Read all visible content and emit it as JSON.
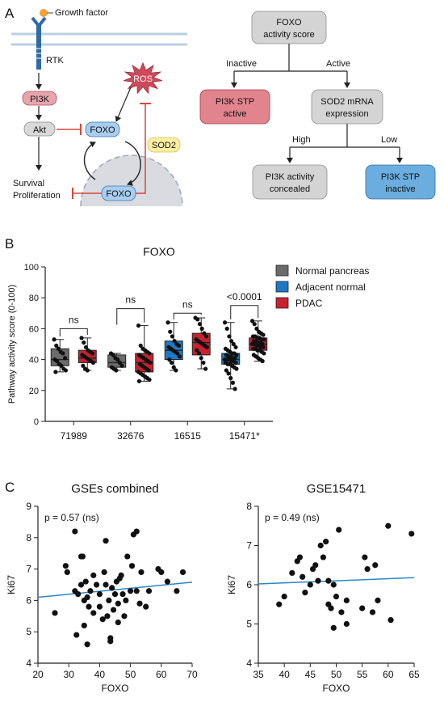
{
  "panel_labels": {
    "a": "A",
    "b": "B",
    "c": "C"
  },
  "pathway": {
    "growth_factor": "Growth factor",
    "rtk": "RTK",
    "pi3k": "PI3K",
    "akt": "Akt",
    "foxo_cyto": "FOXO",
    "foxo_nuc": "FOXO",
    "ros": "ROS",
    "sod2": "SOD2",
    "outcome_line1": "Survival",
    "outcome_line2": "Proliferation",
    "colors": {
      "pink": "#e7a5ad",
      "blue": "#a9cdee",
      "grey": "#d9d9d9",
      "ros_red": "#cf4a5a",
      "sod2_yellow": "#fbeea3",
      "inhibit_red": "#d8473e",
      "membrane": "#b9cfe4"
    }
  },
  "flowchart": {
    "root_line1": "FOXO",
    "root_line2": "activity score",
    "inactive": "Inactive",
    "active": "Active",
    "pi3k_active_line1": "PI3K STP",
    "pi3k_active_line2": "active",
    "sod2_line1": "SOD2 mRNA",
    "sod2_line2": "expression",
    "high": "High",
    "low": "Low",
    "concealed_line1": "PI3K activity",
    "concealed_line2": "concealed",
    "inactive_box_line1": "PI3K STP",
    "inactive_box_line2": "inactive",
    "colors": {
      "grey": "#d4d4d4",
      "red": "#e2848e",
      "blue": "#6badde"
    }
  },
  "chart_data": [
    {
      "type": "box",
      "title": "FOXO",
      "ylabel": "Pathway activity score (0-100)",
      "xlabel": "",
      "ylim": [
        0,
        100
      ],
      "yticks": [
        0,
        20,
        40,
        60,
        80,
        100
      ],
      "categories": [
        "71989",
        "32676",
        "16515",
        "15471*"
      ],
      "legend": [
        "Normal pancreas",
        "Adjacent normal",
        "PDAC"
      ],
      "legend_position": "top-right",
      "colors": {
        "Normal pancreas": "#6b6b6b",
        "Adjacent normal": "#1f78c4",
        "PDAC": "#c8222f"
      },
      "significance": [
        "ns",
        "ns",
        "ns",
        "<0.0001"
      ],
      "boxes": [
        {
          "category": "71989",
          "group": "Normal pancreas",
          "min": 32,
          "q1": 36,
          "median": 40,
          "q3": 47,
          "max": 53,
          "points": [
            53,
            49,
            47,
            45,
            44,
            41,
            40,
            39,
            37,
            36,
            34,
            33,
            32
          ]
        },
        {
          "category": "71989",
          "group": "PDAC",
          "min": 33,
          "q1": 38,
          "median": 41,
          "q3": 46,
          "max": 54,
          "points": [
            54,
            51,
            48,
            46,
            45,
            44,
            43,
            42,
            41,
            40,
            39,
            38,
            36,
            34,
            33
          ]
        },
        {
          "category": "32676",
          "group": "Normal pancreas",
          "min": 33,
          "q1": 35,
          "median": 38,
          "q3": 43,
          "max": 44,
          "points": [
            44,
            43,
            41,
            40,
            38,
            36,
            35,
            34,
            33
          ]
        },
        {
          "category": "32676",
          "group": "PDAC",
          "min": 26,
          "q1": 32,
          "median": 38,
          "q3": 44,
          "max": 62,
          "points": [
            62,
            49,
            47,
            46,
            45,
            44,
            43,
            42,
            41,
            40,
            39,
            38,
            37,
            36,
            35,
            34,
            33,
            32,
            31,
            30,
            29,
            28,
            27,
            26
          ]
        },
        {
          "category": "16515",
          "group": "Adjacent normal",
          "min": 33,
          "q1": 40,
          "median": 46,
          "q3": 52,
          "max": 64,
          "points": [
            64,
            58,
            55,
            52,
            50,
            49,
            48,
            47,
            46,
            45,
            44,
            42,
            40,
            38,
            35,
            33
          ]
        },
        {
          "category": "16515",
          "group": "PDAC",
          "min": 34,
          "q1": 43,
          "median": 51,
          "q3": 57,
          "max": 67,
          "points": [
            67,
            66,
            63,
            60,
            57,
            55,
            53,
            52,
            51,
            50,
            49,
            48,
            46,
            44,
            41,
            38,
            34
          ]
        },
        {
          "category": "15471*",
          "group": "Adjacent normal",
          "min": 21,
          "q1": 37,
          "median": 40,
          "q3": 44,
          "max": 64,
          "points": [
            64,
            60,
            55,
            52,
            50,
            48,
            47,
            46,
            45,
            44,
            44,
            43,
            43,
            42,
            42,
            41,
            41,
            40,
            40,
            40,
            39,
            39,
            38,
            38,
            37,
            37,
            36,
            35,
            34,
            33,
            31,
            28,
            25,
            21
          ]
        },
        {
          "category": "15471*",
          "group": "PDAC",
          "min": 39,
          "q1": 46,
          "median": 50,
          "q3": 54,
          "max": 65,
          "points": [
            65,
            63,
            60,
            58,
            57,
            56,
            55,
            55,
            54,
            54,
            53,
            53,
            52,
            52,
            51,
            51,
            50,
            50,
            50,
            49,
            49,
            48,
            48,
            47,
            47,
            46,
            46,
            45,
            44,
            43,
            42,
            41,
            40,
            39
          ]
        }
      ]
    },
    {
      "type": "scatter",
      "title": "GSEs combined",
      "annotation": "p = 0.57 (ns)",
      "xlabel": "FOXO",
      "ylabel": "Ki67",
      "xlim": [
        20,
        70
      ],
      "ylim": [
        4,
        9
      ],
      "xticks": [
        20,
        30,
        40,
        50,
        60,
        70
      ],
      "yticks": [
        4,
        5,
        6,
        7,
        8,
        9
      ],
      "regression": {
        "x": [
          20,
          70
        ],
        "y": [
          6.1,
          6.58
        ]
      },
      "points": [
        {
          "x": 29,
          "y": 7.1
        },
        {
          "x": 29.5,
          "y": 6.9
        },
        {
          "x": 32,
          "y": 8.2
        },
        {
          "x": 32,
          "y": 6.3
        },
        {
          "x": 32.5,
          "y": 4.9
        },
        {
          "x": 33,
          "y": 6.2
        },
        {
          "x": 34,
          "y": 7.4
        },
        {
          "x": 34,
          "y": 6.5
        },
        {
          "x": 34.5,
          "y": 7.4
        },
        {
          "x": 35,
          "y": 6.0
        },
        {
          "x": 35.5,
          "y": 6.6
        },
        {
          "x": 35,
          "y": 5.2
        },
        {
          "x": 36,
          "y": 6.1
        },
        {
          "x": 36.5,
          "y": 5.8
        },
        {
          "x": 36,
          "y": 4.6
        },
        {
          "x": 37,
          "y": 6.3
        },
        {
          "x": 38,
          "y": 6.8
        },
        {
          "x": 38,
          "y": 5.6
        },
        {
          "x": 39,
          "y": 6.5
        },
        {
          "x": 40,
          "y": 5.8
        },
        {
          "x": 40,
          "y": 6.2
        },
        {
          "x": 41,
          "y": 5.4
        },
        {
          "x": 41.5,
          "y": 6.9
        },
        {
          "x": 42,
          "y": 7.9
        },
        {
          "x": 42,
          "y": 6.5
        },
        {
          "x": 42.5,
          "y": 5.5
        },
        {
          "x": 43,
          "y": 6.0
        },
        {
          "x": 43.5,
          "y": 4.8
        },
        {
          "x": 43.5,
          "y": 4.7
        },
        {
          "x": 44,
          "y": 6.4
        },
        {
          "x": 44.5,
          "y": 5.7
        },
        {
          "x": 45,
          "y": 6.2
        },
        {
          "x": 45.5,
          "y": 6.6
        },
        {
          "x": 46,
          "y": 5.9
        },
        {
          "x": 46,
          "y": 5.3
        },
        {
          "x": 46.5,
          "y": 6.7
        },
        {
          "x": 47,
          "y": 6.8
        },
        {
          "x": 47.5,
          "y": 6.2
        },
        {
          "x": 48,
          "y": 5.5
        },
        {
          "x": 48.5,
          "y": 6.0
        },
        {
          "x": 49,
          "y": 7.4
        },
        {
          "x": 50,
          "y": 6.3
        },
        {
          "x": 50.5,
          "y": 7.1
        },
        {
          "x": 51,
          "y": 8.1
        },
        {
          "x": 52,
          "y": 8.2
        },
        {
          "x": 52,
          "y": 6.3
        },
        {
          "x": 53,
          "y": 5.9
        },
        {
          "x": 53.5,
          "y": 6.9
        },
        {
          "x": 55,
          "y": 5.8
        },
        {
          "x": 56,
          "y": 6.3
        },
        {
          "x": 59,
          "y": 7.0
        },
        {
          "x": 60,
          "y": 6.9
        },
        {
          "x": 62,
          "y": 6.6
        },
        {
          "x": 65,
          "y": 6.3
        },
        {
          "x": 67,
          "y": 6.9
        },
        {
          "x": 25.5,
          "y": 5.6
        }
      ]
    },
    {
      "type": "scatter",
      "title": "GSE15471",
      "annotation": "p = 0.49 (ns)",
      "xlabel": "FOXO",
      "ylabel": "Ki67",
      "xlim": [
        35,
        65
      ],
      "ylim": [
        4,
        8
      ],
      "xticks": [
        35,
        40,
        45,
        50,
        55,
        60,
        65
      ],
      "yticks": [
        4,
        5,
        6,
        7,
        8
      ],
      "regression": {
        "x": [
          35,
          65
        ],
        "y": [
          6.02,
          6.18
        ]
      },
      "points": [
        {
          "x": 39,
          "y": 5.5
        },
        {
          "x": 40,
          "y": 5.7
        },
        {
          "x": 41.5,
          "y": 6.3
        },
        {
          "x": 42.5,
          "y": 6.6
        },
        {
          "x": 43,
          "y": 6.7
        },
        {
          "x": 43.5,
          "y": 6.2
        },
        {
          "x": 44,
          "y": 5.8
        },
        {
          "x": 45,
          "y": 6.0
        },
        {
          "x": 45.5,
          "y": 6.4
        },
        {
          "x": 46,
          "y": 6.5
        },
        {
          "x": 46.5,
          "y": 6.1
        },
        {
          "x": 47,
          "y": 7.0
        },
        {
          "x": 47.5,
          "y": 6.7
        },
        {
          "x": 48,
          "y": 7.1
        },
        {
          "x": 48.5,
          "y": 6.1
        },
        {
          "x": 48.5,
          "y": 5.5
        },
        {
          "x": 49,
          "y": 5.4
        },
        {
          "x": 49.5,
          "y": 6.0
        },
        {
          "x": 49.5,
          "y": 4.9
        },
        {
          "x": 50,
          "y": 5.7
        },
        {
          "x": 50.5,
          "y": 7.4
        },
        {
          "x": 51,
          "y": 5.3
        },
        {
          "x": 52,
          "y": 5.6
        },
        {
          "x": 52,
          "y": 5.0
        },
        {
          "x": 55,
          "y": 5.4
        },
        {
          "x": 55.5,
          "y": 6.7
        },
        {
          "x": 56,
          "y": 6.4
        },
        {
          "x": 57,
          "y": 5.3
        },
        {
          "x": 57.5,
          "y": 6.5
        },
        {
          "x": 58,
          "y": 5.6
        },
        {
          "x": 60,
          "y": 7.5
        },
        {
          "x": 60.5,
          "y": 5.1
        },
        {
          "x": 64.5,
          "y": 7.3
        }
      ]
    }
  ]
}
